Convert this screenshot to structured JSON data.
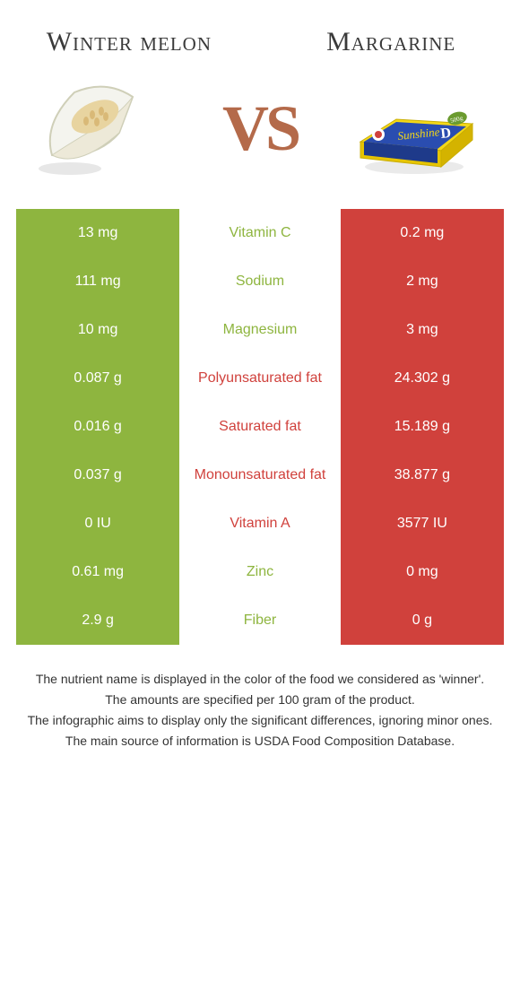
{
  "left_food": "Winter melon",
  "right_food": "Margarine",
  "vs_label": "VS",
  "colors": {
    "left": "#8eb53f",
    "right": "#d0413c",
    "left_text": "#8eb53f",
    "right_text": "#d0413c"
  },
  "rows": [
    {
      "left_val": "13 mg",
      "nutrient": "Vitamin C",
      "right_val": "0.2 mg",
      "winner": "left"
    },
    {
      "left_val": "111 mg",
      "nutrient": "Sodium",
      "right_val": "2 mg",
      "winner": "left"
    },
    {
      "left_val": "10 mg",
      "nutrient": "Magnesium",
      "right_val": "3 mg",
      "winner": "left"
    },
    {
      "left_val": "0.087 g",
      "nutrient": "Polyunsaturated fat",
      "right_val": "24.302 g",
      "winner": "right"
    },
    {
      "left_val": "0.016 g",
      "nutrient": "Saturated fat",
      "right_val": "15.189 g",
      "winner": "right"
    },
    {
      "left_val": "0.037 g",
      "nutrient": "Monounsaturated fat",
      "right_val": "38.877 g",
      "winner": "right"
    },
    {
      "left_val": "0 IU",
      "nutrient": "Vitamin A",
      "right_val": "3577 IU",
      "winner": "right"
    },
    {
      "left_val": "0.61 mg",
      "nutrient": "Zinc",
      "right_val": "0 mg",
      "winner": "left"
    },
    {
      "left_val": "2.9 g",
      "nutrient": "Fiber",
      "right_val": "0 g",
      "winner": "left"
    }
  ],
  "footer": [
    "The nutrient name is displayed in the color of the food we considered as 'winner'.",
    "The amounts are specified per 100 gram of the product.",
    "The infographic aims to display only the significant differences, ignoring minor ones.",
    "The main source of information is USDA Food Composition Database."
  ]
}
